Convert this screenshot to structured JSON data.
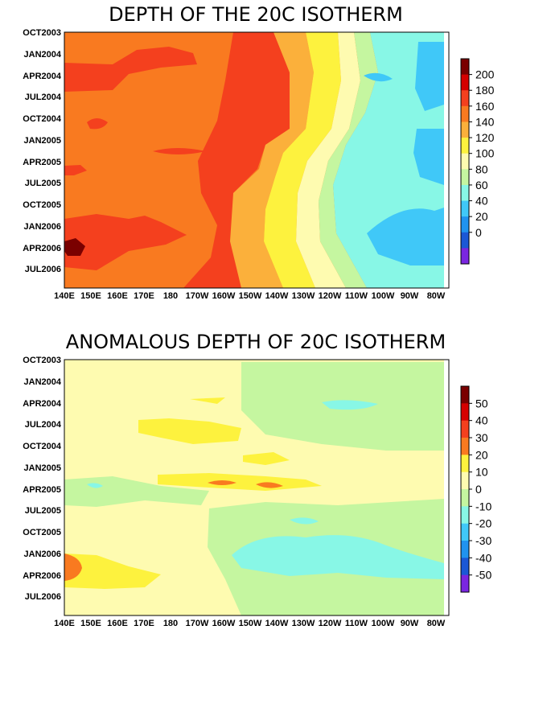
{
  "chart_data": [
    {
      "type": "heatmap",
      "title": "DEPTH OF THE 20C ISOTHERM",
      "x_ticks": [
        "140E",
        "150E",
        "160E",
        "170E",
        "180",
        "170W",
        "160W",
        "150W",
        "140W",
        "130W",
        "120W",
        "110W",
        "100W",
        "90W",
        "80W"
      ],
      "y_ticks": [
        "OCT2003",
        "JAN2004",
        "APR2004",
        "JUL2004",
        "OCT2004",
        "JAN2005",
        "APR2005",
        "JUL2005",
        "OCT2005",
        "JAN2006",
        "APR2006",
        "JUL2006"
      ],
      "colorbar": {
        "labels": [
          "200",
          "180",
          "160",
          "140",
          "120",
          "100",
          "80",
          "60",
          "40",
          "20",
          "0"
        ],
        "colors": [
          "#7a0000",
          "#d50000",
          "#f4401e",
          "#f97a20",
          "#fbb03b",
          "#fdf23e",
          "#fefbb0",
          "#c5f6a0",
          "#88f7e6",
          "#40c8f8",
          "#2093ef",
          "#1b58d6",
          "#7a26e0"
        ]
      },
      "values_colors": [
        "#f97a20",
        "#f4401e",
        "#fdf23e",
        "#fbb03b",
        "#fefbb0",
        "#c5f6a0",
        "#88f7e6",
        "#40c8f8"
      ]
    },
    {
      "type": "heatmap",
      "title": "ANOMALOUS DEPTH OF 20C ISOTHERM",
      "x_ticks": [
        "140E",
        "150E",
        "160E",
        "170E",
        "180",
        "170W",
        "160W",
        "150W",
        "140W",
        "130W",
        "120W",
        "110W",
        "100W",
        "90W",
        "80W"
      ],
      "y_ticks": [
        "OCT2003",
        "JAN2004",
        "APR2004",
        "JUL2004",
        "OCT2004",
        "JAN2005",
        "APR2005",
        "JUL2005",
        "OCT2005",
        "JAN2006",
        "APR2006",
        "JUL2006"
      ],
      "colorbar": {
        "labels": [
          "50",
          "40",
          "30",
          "20",
          "10",
          "0",
          "-10",
          "-20",
          "-30",
          "-40",
          "-50"
        ],
        "colors": [
          "#7a0000",
          "#d50000",
          "#f4401e",
          "#f97a20",
          "#fdf23e",
          "#fefbb0",
          "#c5f6a0",
          "#88f7e6",
          "#40c8f8",
          "#2093ef",
          "#1b58d6",
          "#7a26e0"
        ]
      }
    }
  ]
}
